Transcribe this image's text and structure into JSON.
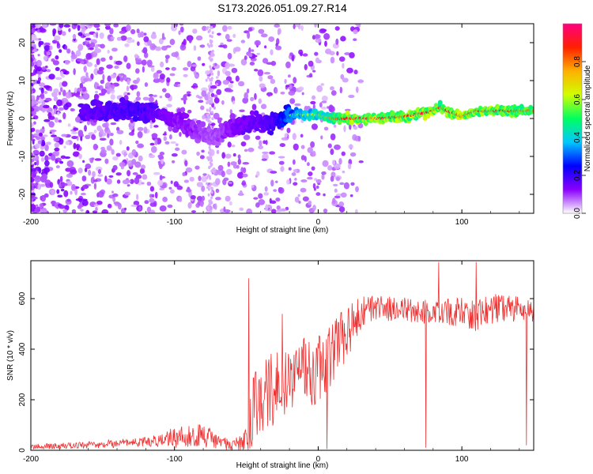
{
  "title": "S173.2026.051.09.27.R14",
  "chart_data": [
    {
      "type": "heatmap",
      "title": "S173.2026.051.09.27.R14",
      "xlabel": "Height of straight line (km)",
      "ylabel": "Frequency (Hz)",
      "xlim": [
        -200,
        150
      ],
      "ylim": [
        -25,
        25
      ],
      "x_ticks": [
        -200,
        -100,
        0,
        100
      ],
      "y_ticks": [
        -20,
        -10,
        0,
        10,
        20
      ],
      "x_tick_labels": [
        "-200",
        "-100",
        "0",
        "100"
      ],
      "y_tick_labels": [
        "-20",
        "-10",
        "0",
        "10",
        "20"
      ],
      "ridge": {
        "x": [
          -160,
          -140,
          -120,
          -110,
          -100,
          -90,
          -80,
          -70,
          -60,
          -50,
          -40,
          -30,
          -20,
          -10,
          0,
          10,
          20,
          40,
          60,
          80,
          85,
          90,
          100,
          110,
          120,
          140,
          150
        ],
        "freq": [
          2,
          2,
          1.5,
          1,
          0,
          -2,
          -4,
          -5,
          -2,
          -1,
          -1,
          -1,
          1,
          1,
          1,
          0,
          0,
          0,
          0.5,
          2,
          3,
          2,
          0.5,
          2,
          2,
          2,
          2
        ],
        "amplitude": [
          0.25,
          0.3,
          0.3,
          0.25,
          0.2,
          0.2,
          0.15,
          0.15,
          0.2,
          0.25,
          0.25,
          0.3,
          0.5,
          0.6,
          0.7,
          0.8,
          0.9,
          0.95,
          0.9,
          0.95,
          0.85,
          0.9,
          0.95,
          0.9,
          0.9,
          0.85,
          0.8
        ]
      },
      "colorbar": {
        "label": "Normalized spectral amplitude",
        "range": [
          0,
          1
        ],
        "ticks": [
          0.0,
          0.2,
          0.4,
          0.6,
          0.8
        ],
        "tick_labels": [
          "0.0",
          "0.2",
          "0.4",
          "0.6",
          "0.8"
        ],
        "stops": [
          "#ffffff",
          "#8a00ff",
          "#0000ff",
          "#00c8ff",
          "#00ff60",
          "#d0ff00",
          "#ffb000",
          "#ff2000",
          "#ff0080"
        ]
      }
    },
    {
      "type": "line",
      "xlabel": "Height of straight line (km)",
      "ylabel": "SNR (10 * v/v)",
      "xlim": [
        -200,
        150
      ],
      "ylim": [
        0,
        750
      ],
      "x_ticks": [
        -200,
        -100,
        0,
        100
      ],
      "y_ticks": [
        0,
        200,
        400,
        600
      ],
      "x_tick_labels": [
        "-200",
        "-100",
        "0",
        "100"
      ],
      "y_tick_labels": [
        "0",
        "200",
        "400",
        "600"
      ],
      "color": "#ee3333",
      "envelope": {
        "x": [
          -200,
          -160,
          -120,
          -100,
          -80,
          -70,
          -60,
          -50,
          -45,
          -40,
          -30,
          -20,
          -10,
          0,
          10,
          20,
          30,
          40,
          60,
          80,
          100,
          110,
          120,
          140,
          150
        ],
        "mean": [
          15,
          20,
          35,
          50,
          55,
          35,
          20,
          40,
          150,
          200,
          230,
          260,
          300,
          330,
          380,
          470,
          540,
          560,
          560,
          540,
          550,
          530,
          560,
          560,
          540
        ],
        "spread": [
          10,
          15,
          20,
          40,
          50,
          35,
          20,
          50,
          150,
          160,
          160,
          150,
          150,
          150,
          130,
          110,
          70,
          50,
          50,
          50,
          60,
          60,
          60,
          50,
          50
        ]
      },
      "spikes": [
        {
          "x": -48.5,
          "y": 680
        },
        {
          "x": -25,
          "y": 540
        },
        {
          "x": -12,
          "y": 320
        },
        {
          "x": 6,
          "y": 5
        },
        {
          "x": 75,
          "y": 10
        },
        {
          "x": 84,
          "y": 745
        },
        {
          "x": 110,
          "y": 745
        },
        {
          "x": 145,
          "y": 20
        }
      ]
    }
  ]
}
